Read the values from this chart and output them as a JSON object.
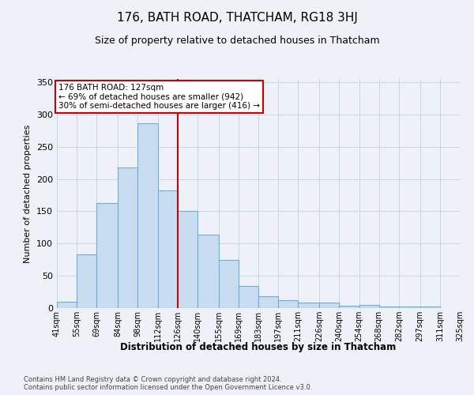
{
  "title": "176, BATH ROAD, THATCHAM, RG18 3HJ",
  "subtitle": "Size of property relative to detached houses in Thatcham",
  "xlabel": "Distribution of detached houses by size in Thatcham",
  "ylabel": "Number of detached properties",
  "bar_values": [
    10,
    83,
    163,
    218,
    287,
    182,
    150,
    114,
    75,
    34,
    18,
    12,
    9,
    8,
    4,
    5,
    2,
    2,
    3
  ],
  "bin_labels": [
    "41sqm",
    "55sqm",
    "69sqm",
    "84sqm",
    "98sqm",
    "112sqm",
    "126sqm",
    "140sqm",
    "155sqm",
    "169sqm",
    "183sqm",
    "197sqm",
    "211sqm",
    "226sqm",
    "240sqm",
    "254sqm",
    "268sqm",
    "282sqm",
    "297sqm",
    "311sqm",
    "325sqm"
  ],
  "label_vals": [
    41,
    55,
    69,
    84,
    98,
    112,
    126,
    140,
    155,
    169,
    183,
    197,
    211,
    226,
    240,
    254,
    268,
    282,
    297,
    311,
    325
  ],
  "bar_color": "#c9ddf0",
  "bar_edge_color": "#6baed6",
  "grid_color": "#c8d8e8",
  "vline_x": 126,
  "vline_color": "#cc0000",
  "ylim": [
    0,
    355
  ],
  "yticks": [
    0,
    50,
    100,
    150,
    200,
    250,
    300,
    350
  ],
  "property_label": "176 BATH ROAD: 127sqm",
  "annotation_line1": "← 69% of detached houses are smaller (942)",
  "annotation_line2": "30% of semi-detached houses are larger (416) →",
  "footer_line1": "Contains HM Land Registry data © Crown copyright and database right 2024.",
  "footer_line2": "Contains public sector information licensed under the Open Government Licence v3.0.",
  "background_color": "#eef2f8"
}
